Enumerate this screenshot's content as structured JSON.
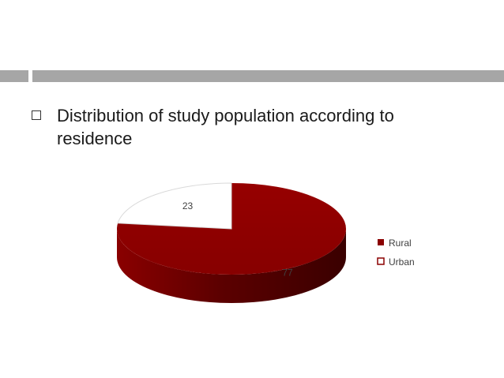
{
  "slide": {
    "bullet_text": "Distribution of study population according to residence"
  },
  "chart_data": {
    "type": "pie",
    "categories": [
      "Rural",
      "Urban"
    ],
    "values": [
      77,
      23
    ],
    "data_labels": [
      "77",
      "23"
    ],
    "colors": [
      "#8b0000",
      "#ffffff"
    ],
    "legend_position": "right",
    "style": "3d"
  }
}
